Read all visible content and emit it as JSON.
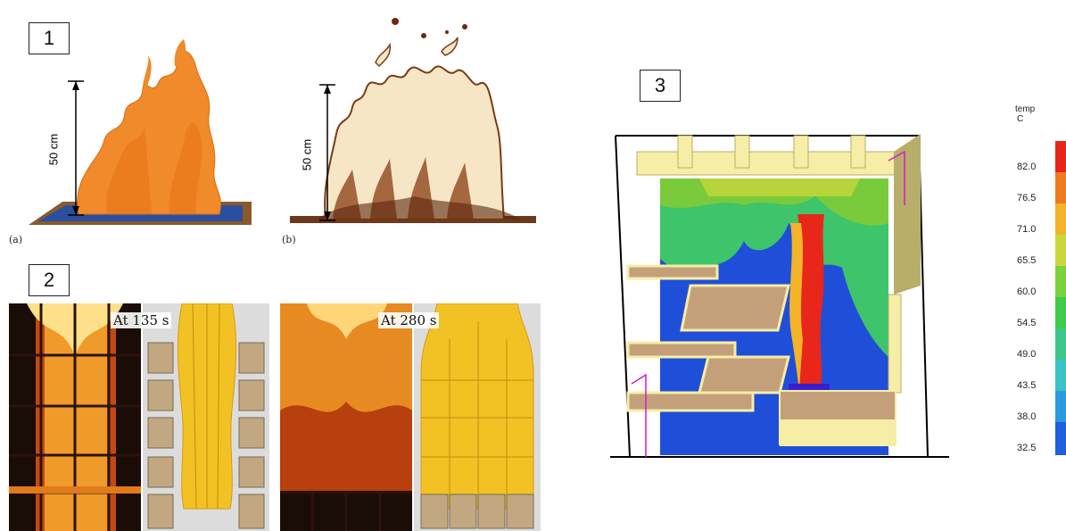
{
  "panel1": {
    "number": "1",
    "sub_a": "(a)",
    "sub_b": "(b)",
    "dim_a": "50 cm",
    "dim_b": "50 cm"
  },
  "panel2": {
    "number": "2",
    "caption_left": "At 135 s",
    "caption_right": "At 280 s"
  },
  "panel3": {
    "number": "3",
    "legend_title": "temp",
    "legend_unit": "C",
    "legend_ticks": [
      "82.0",
      "76.5",
      "71.0",
      "65.5",
      "60.0",
      "54.5",
      "49.0",
      "43.5",
      "38.0",
      "32.5"
    ],
    "legend_colors": [
      "#e8261a",
      "#f07a1e",
      "#f3b42a",
      "#c9d73a",
      "#7ad23c",
      "#3fca49",
      "#3ec78a",
      "#39c3c7",
      "#2a9be0",
      "#1c5fe0"
    ]
  }
}
